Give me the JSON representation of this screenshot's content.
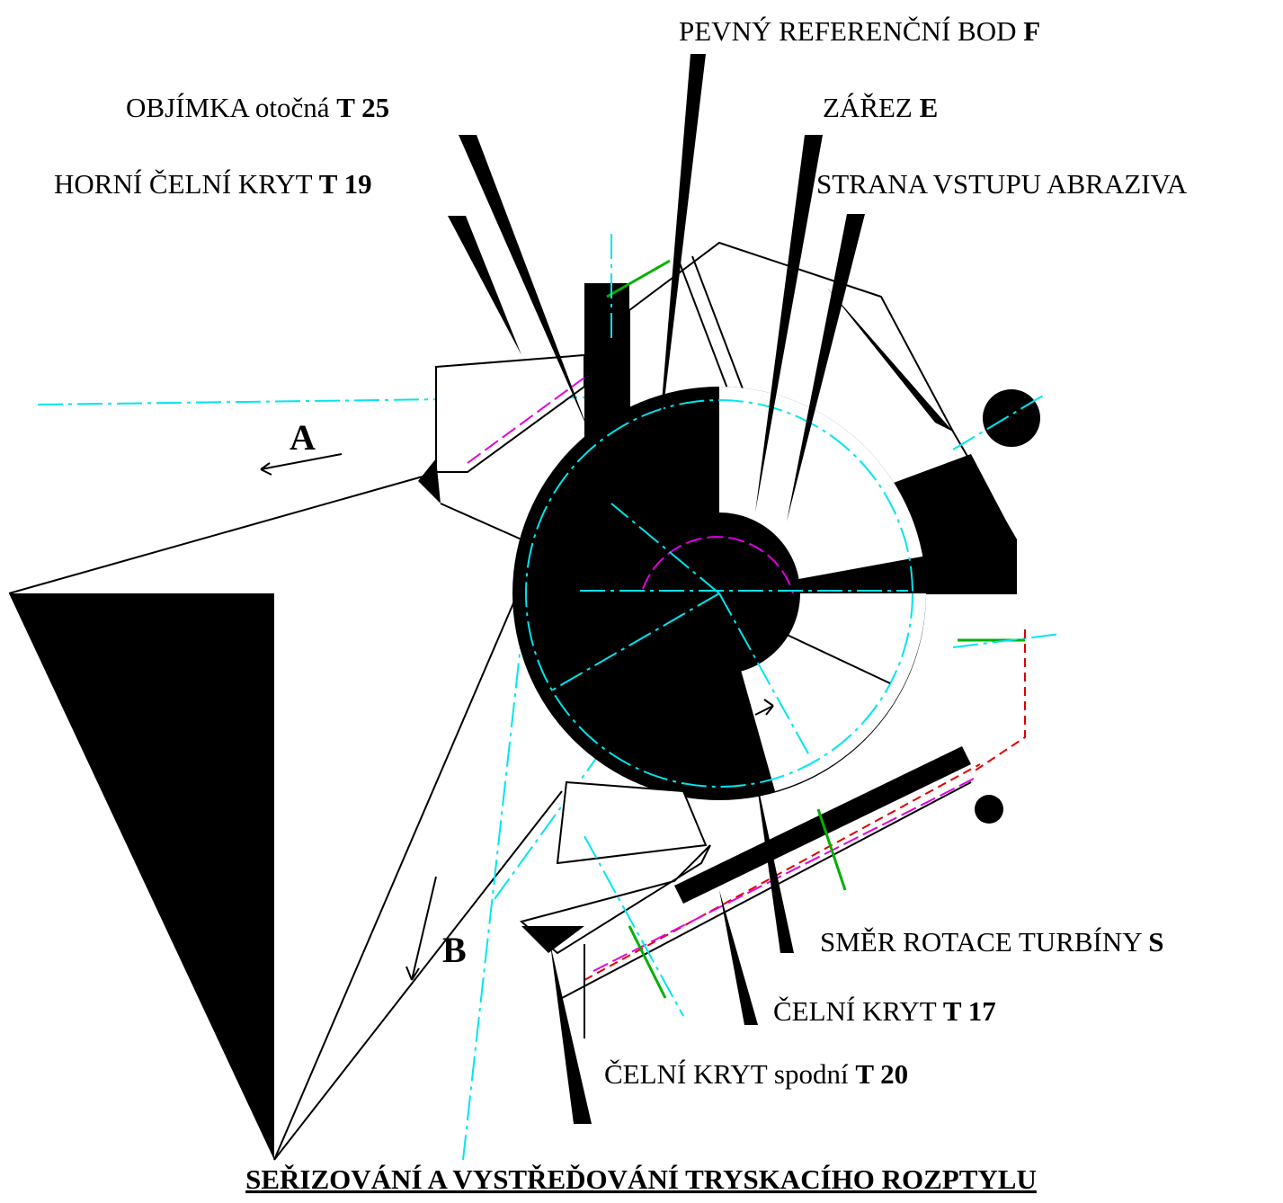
{
  "title": "SEŘIZOVÁNÍ A VYSTŘEĎOVÁNÍ TRYSKACÍHO ROZPTYLU",
  "labels": [
    {
      "text": "PEVNÝ REFERENČNÍ BOD",
      "code": "F"
    },
    {
      "text": "OBJÍMKA otočná",
      "code": "T 25"
    },
    {
      "text": "ZÁŘEZ",
      "code": "E"
    },
    {
      "text": "HORNÍ ČELNÍ KRYT",
      "code": "T 19"
    },
    {
      "text": "STRANA VSTUPU ABRAZIVA"
    },
    {
      "text": "SMĚR ROTACE TURBÍNY",
      "code": "S"
    },
    {
      "text": "ČELNÍ KRYT",
      "code": "T 17"
    },
    {
      "text": "ČELNÍ KRYT spodní",
      "code": "T 20"
    }
  ],
  "markers": [
    "A",
    "B"
  ]
}
